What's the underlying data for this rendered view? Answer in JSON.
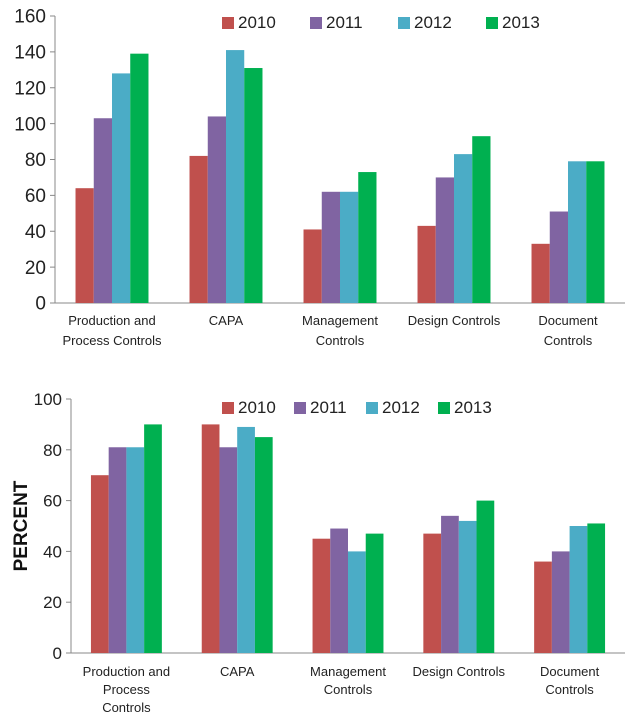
{
  "chart_data": [
    {
      "type": "bar",
      "title": "",
      "xlabel": "",
      "ylabel": "",
      "ylim": [
        0,
        160
      ],
      "yticks": [
        0,
        20,
        40,
        60,
        80,
        100,
        120,
        140,
        160
      ],
      "grid": false,
      "legend": "top-right",
      "categories": [
        [
          "Production and",
          "Process Controls"
        ],
        [
          "CAPA"
        ],
        [
          "Management",
          "Controls"
        ],
        [
          "Design Controls"
        ],
        [
          "Document",
          "Controls"
        ]
      ],
      "series": [
        {
          "name": "2010",
          "color": "#c0504d",
          "values": [
            64,
            82,
            41,
            43,
            33
          ]
        },
        {
          "name": "2011",
          "color": "#8064a2",
          "values": [
            103,
            104,
            62,
            70,
            51
          ]
        },
        {
          "name": "2012",
          "color": "#4bacc6",
          "values": [
            128,
            141,
            62,
            83,
            79
          ]
        },
        {
          "name": "2013",
          "color": "#00b050",
          "values": [
            139,
            131,
            73,
            93,
            79
          ]
        }
      ]
    },
    {
      "type": "bar",
      "title": "",
      "xlabel": "",
      "ylabel": "PERCENT",
      "ylim": [
        0,
        100
      ],
      "yticks": [
        0,
        20,
        40,
        60,
        80,
        100
      ],
      "grid": false,
      "legend": "top-right",
      "categories": [
        [
          "Production and",
          "Process",
          "Controls"
        ],
        [
          "CAPA"
        ],
        [
          "Management",
          "Controls"
        ],
        [
          "Design Controls"
        ],
        [
          "Document",
          "Controls"
        ]
      ],
      "series": [
        {
          "name": "2010",
          "color": "#c0504d",
          "values": [
            70,
            90,
            45,
            47,
            36
          ]
        },
        {
          "name": "2011",
          "color": "#8064a2",
          "values": [
            81,
            81,
            49,
            54,
            40
          ]
        },
        {
          "name": "2012",
          "color": "#4bacc6",
          "values": [
            81,
            89,
            40,
            52,
            50
          ]
        },
        {
          "name": "2013",
          "color": "#00b050",
          "values": [
            90,
            85,
            47,
            60,
            51
          ]
        }
      ]
    }
  ]
}
